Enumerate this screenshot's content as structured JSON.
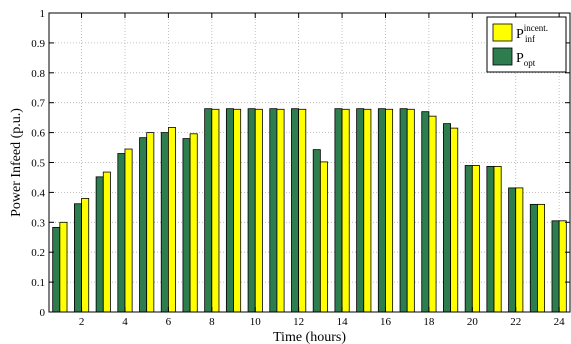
{
  "chart_data": {
    "type": "bar",
    "xlabel": "Time (hours)",
    "ylabel": "Power Infeed (p.u.)",
    "ylim": [
      0,
      1
    ],
    "xlim": [
      0.5,
      24.5
    ],
    "yticks": [
      0,
      0.1,
      0.2,
      0.3,
      0.4,
      0.5,
      0.6,
      0.7,
      0.8,
      0.9,
      1
    ],
    "ytick_labels": [
      "0",
      "0.1",
      "0.2",
      "0.3",
      "0.4",
      "0.5",
      "0.6",
      "0.7",
      "0.8",
      "0.9",
      "1"
    ],
    "xticks": [
      2,
      4,
      6,
      8,
      10,
      12,
      14,
      16,
      18,
      20,
      22,
      24
    ],
    "xtick_labels": [
      "2",
      "4",
      "6",
      "8",
      "10",
      "12",
      "14",
      "16",
      "18",
      "20",
      "22",
      "24"
    ],
    "grid": true,
    "legend_position": "top-right",
    "categories": [
      1,
      2,
      3,
      4,
      5,
      6,
      7,
      8,
      9,
      10,
      11,
      12,
      13,
      14,
      15,
      16,
      17,
      18,
      19,
      20,
      21,
      22,
      23,
      24
    ],
    "series": [
      {
        "name": "P_opt",
        "label_main": "P",
        "label_sub": "opt",
        "color": "#2e7d4f",
        "values": [
          0.283,
          0.362,
          0.452,
          0.53,
          0.583,
          0.6,
          0.58,
          0.68,
          0.68,
          0.68,
          0.68,
          0.68,
          0.543,
          0.68,
          0.68,
          0.68,
          0.68,
          0.67,
          0.63,
          0.49,
          0.487,
          0.415,
          0.36,
          0.305
        ]
      },
      {
        "name": "P_inf^incent.",
        "label_main": "P",
        "label_sub": "inf",
        "label_sup": "incent.",
        "color": "#ffff00",
        "values": [
          0.3,
          0.38,
          0.468,
          0.545,
          0.6,
          0.617,
          0.596,
          0.678,
          0.678,
          0.678,
          0.678,
          0.678,
          0.502,
          0.678,
          0.678,
          0.678,
          0.678,
          0.655,
          0.615,
          0.49,
          0.487,
          0.415,
          0.36,
          0.305
        ]
      }
    ],
    "legend_order": [
      1,
      0
    ]
  }
}
